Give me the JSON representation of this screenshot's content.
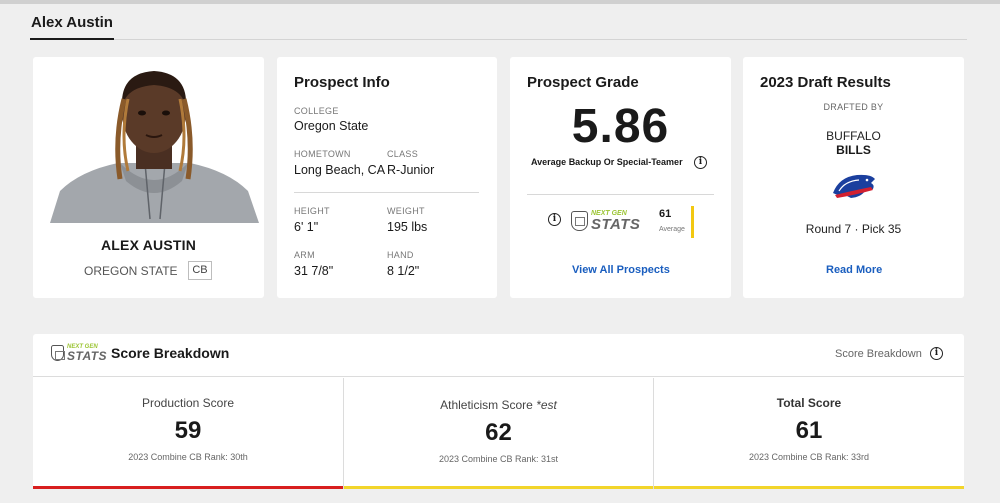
{
  "page": {
    "tab": "Alex Austin"
  },
  "player_card": {
    "name": "ALEX AUSTIN",
    "school": "OREGON STATE",
    "position": "CB"
  },
  "prospect_info": {
    "title": "Prospect Info",
    "college_label": "COLLEGE",
    "college": "Oregon State",
    "hometown_label": "HOMETOWN",
    "hometown": "Long Beach, CA",
    "class_label": "CLASS",
    "class": "R-Junior",
    "height_label": "HEIGHT",
    "height": "6' 1\"",
    "weight_label": "WEIGHT",
    "weight": "195 lbs",
    "arm_label": "ARM",
    "arm": "31 7/8\"",
    "hand_label": "HAND",
    "hand": "8 1/2\""
  },
  "prospect_grade": {
    "title": "Prospect Grade",
    "grade": "5.86",
    "description": "Average Backup Or Special-Teamer",
    "ngs_logo_top": "NEXT GEN",
    "ngs_logo_bottom": "STATS",
    "ngs_score": "61",
    "ngs_score_desc": "Average",
    "ngs_bar_color": "#f2c811",
    "link": "View All Prospects"
  },
  "draft_results": {
    "title": "2023 Draft Results",
    "drafted_by": "DRAFTED BY",
    "team_city": "BUFFALO",
    "team_name": "BILLS",
    "pick": "Round 7 · Pick 35",
    "link": "Read More"
  },
  "score_breakdown": {
    "title": "Score Breakdown",
    "ngs_logo_top": "NEXT GEN",
    "ngs_logo_bottom": "STATS",
    "right_label": "Score Breakdown",
    "scores": [
      {
        "label": "Production Score",
        "value": "59",
        "rank": "2023 Combine CB Rank: 30th",
        "color": "#d81e1e"
      },
      {
        "label": "Athleticism Score",
        "label_suffix": "*est",
        "value": "62",
        "rank": "2023 Combine CB Rank: 31st",
        "color": "#f2d52b"
      },
      {
        "label": "Total Score",
        "value": "61",
        "rank": "2023 Combine CB Rank: 33rd",
        "color": "#f2d52b"
      }
    ]
  }
}
